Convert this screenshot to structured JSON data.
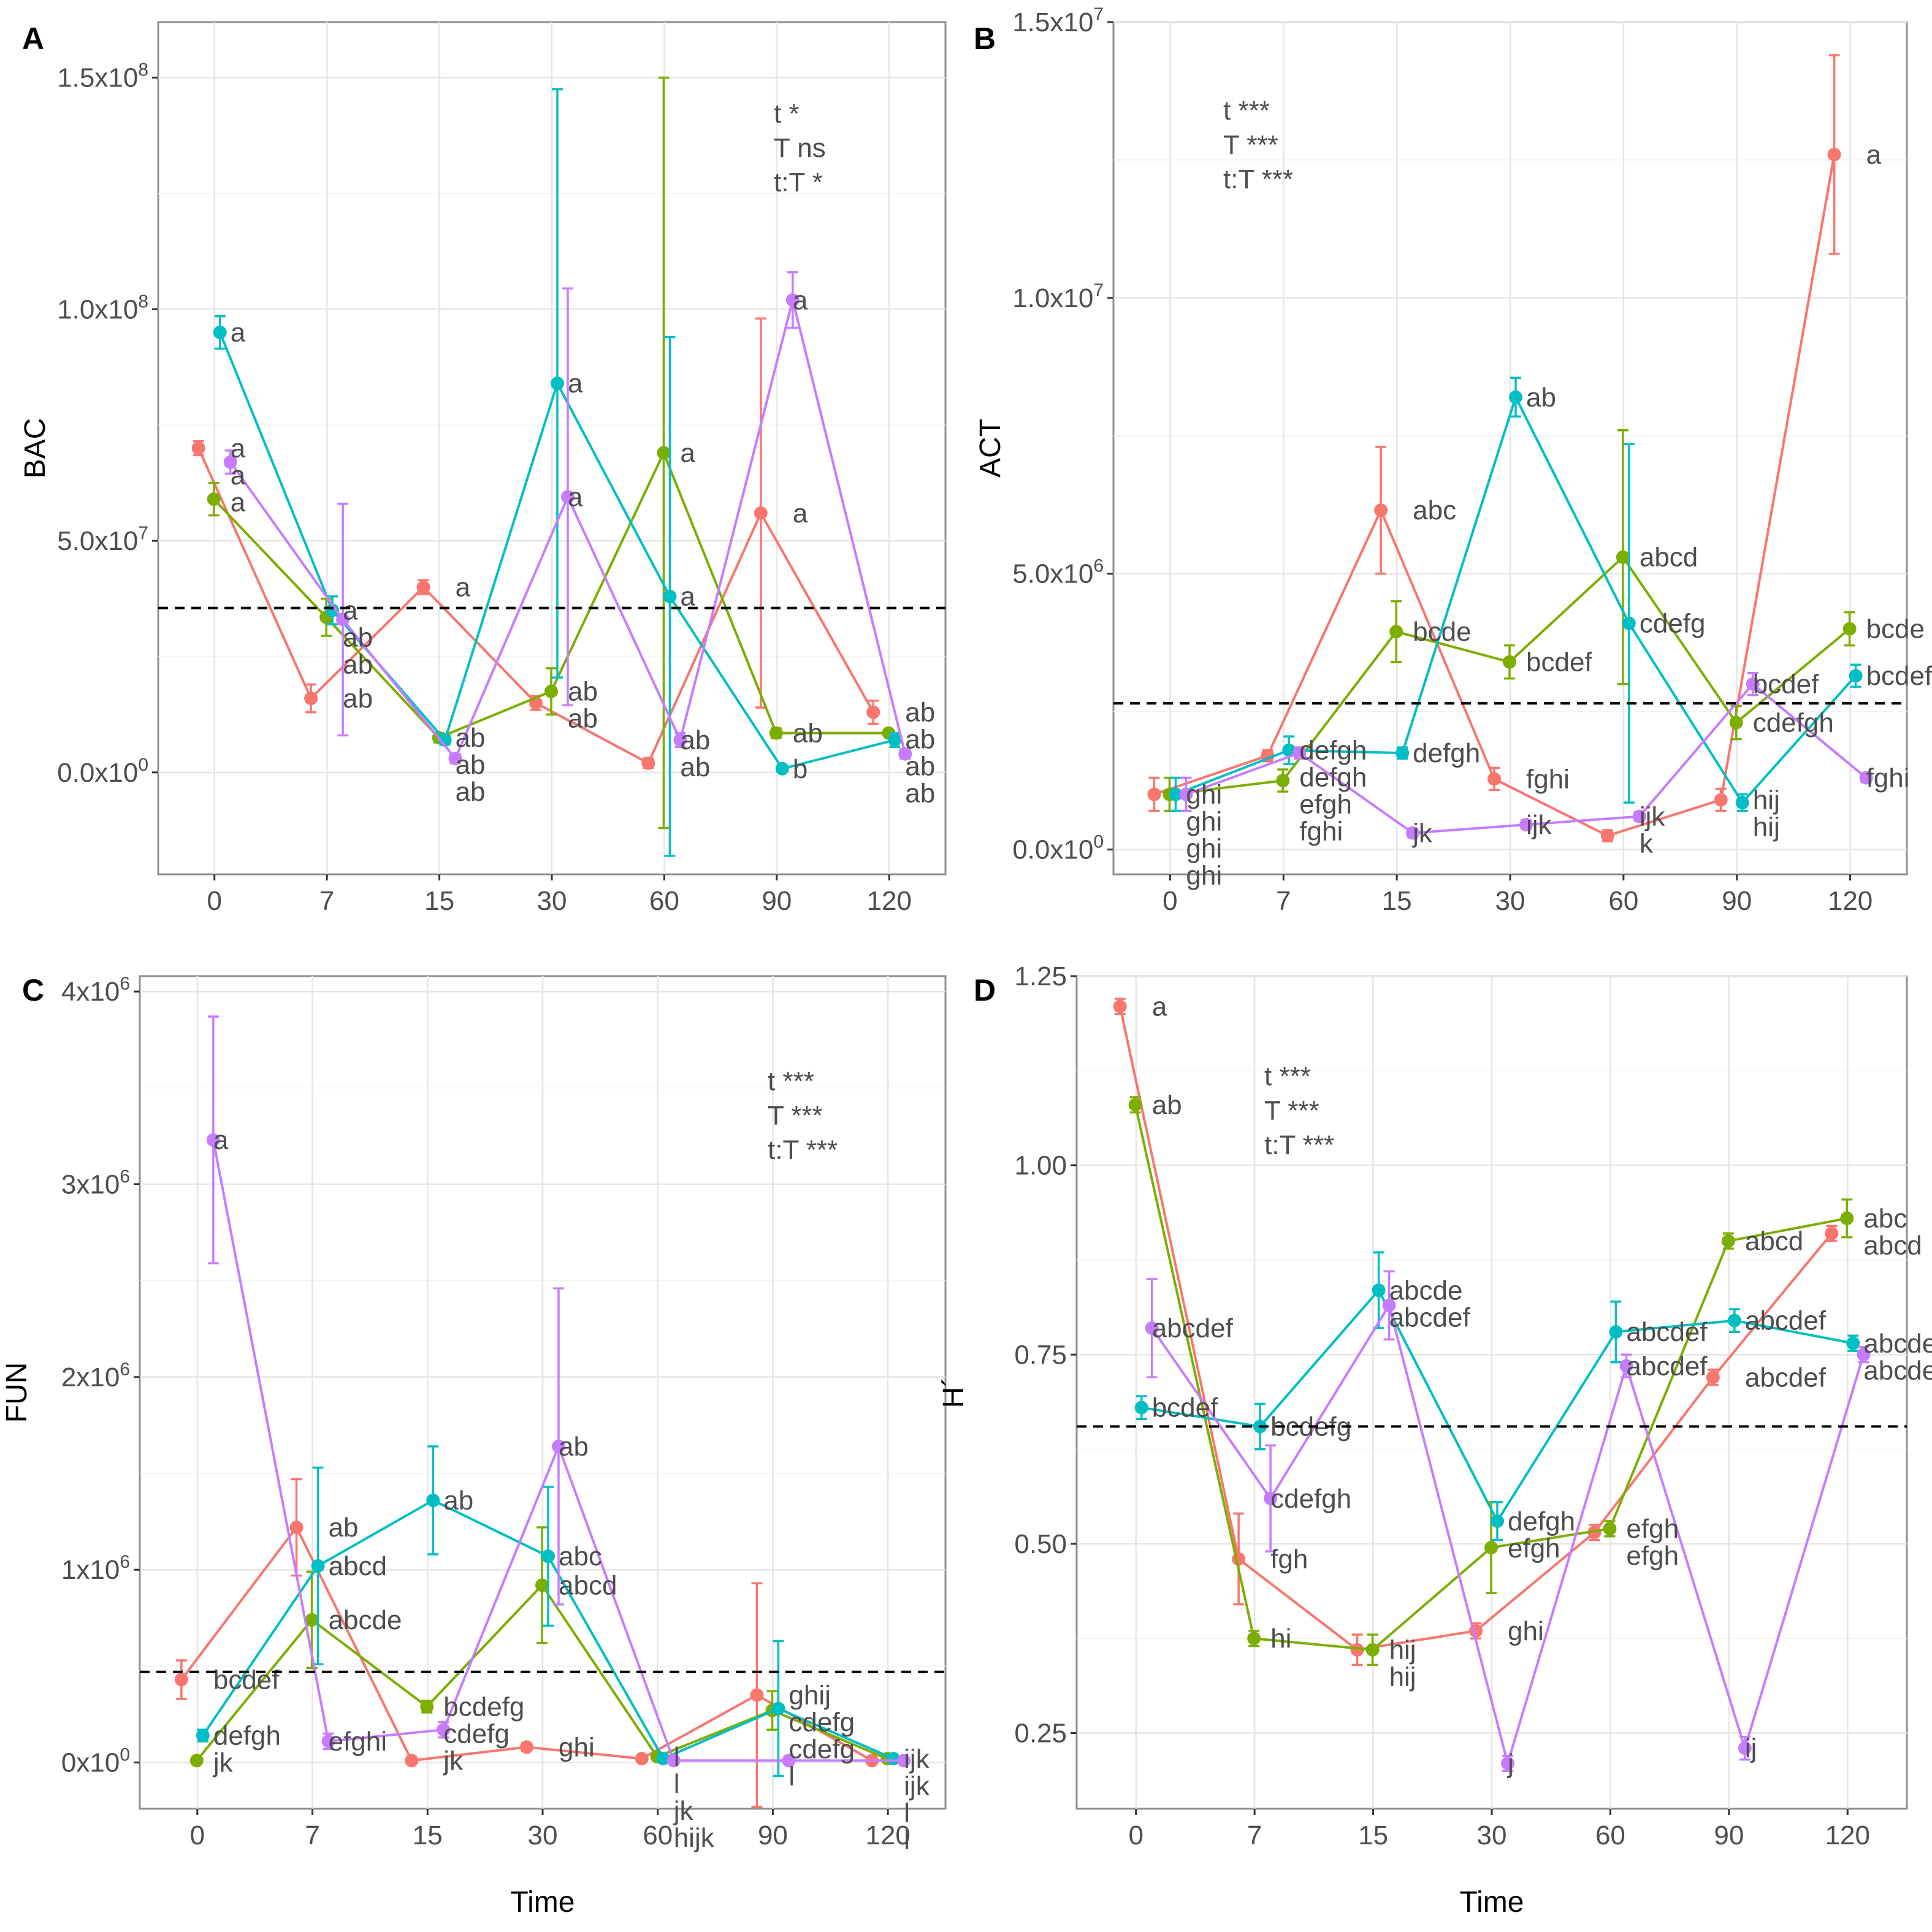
{
  "colors": {
    "t1": "#F8766D",
    "t2": "#7CAE00",
    "t3": "#00BFC4",
    "t4": "#C77CFF"
  },
  "chart_data": [
    {
      "type": "line",
      "panel": "A",
      "ylabel": "BAC",
      "xlabel": "",
      "categories": [
        "0",
        "7",
        "15",
        "30",
        "60",
        "90",
        "120"
      ],
      "ylim": [
        -22000000,
        162000000
      ],
      "yticks": [
        0,
        50000000,
        100000000,
        150000000
      ],
      "ytick_labels": [
        [
          "0.0x10",
          "0"
        ],
        [
          "5.0x10",
          "7"
        ],
        [
          "1.0x10",
          "8"
        ],
        [
          "1.5x10",
          "8"
        ]
      ],
      "reference_line": 35500000,
      "stats": [
        "t *",
        "T ns",
        "t:T *"
      ],
      "series": [
        {
          "name": "red",
          "color": "#F8766D",
          "values": [
            70000000,
            16000000,
            40000000,
            15000000,
            2000000,
            56000000,
            13000000
          ],
          "err": [
            1500000,
            3000000,
            1500000,
            1500000,
            1000000,
            42000000,
            2500000
          ],
          "labels": [
            "a",
            "ab",
            "a",
            "ab",
            "ab",
            "a",
            "ab"
          ]
        },
        {
          "name": "green",
          "color": "#7CAE00",
          "values": [
            59000000,
            33500000,
            7500000,
            17500000,
            69000000,
            8500000,
            8500000
          ],
          "err": [
            3500000,
            4000000,
            1000000,
            5000000,
            81000000,
            1000000,
            500000
          ],
          "labels": [
            "a",
            "ab",
            "ab",
            "ab",
            "a",
            "ab",
            "ab"
          ]
        },
        {
          "name": "cyan",
          "color": "#00BFC4",
          "values": [
            95000000,
            35000000,
            7000000,
            84000000,
            38000000,
            800000,
            7000000
          ],
          "err": [
            3500000,
            3000000,
            1000000,
            63500000,
            56000000,
            300000,
            1500000
          ],
          "labels": [
            "a",
            "a",
            "ab",
            "a",
            "a",
            "b",
            "ab"
          ]
        },
        {
          "name": "purple",
          "color": "#C77CFF",
          "values": [
            67000000,
            33000000,
            3000000,
            59500000,
            7000000,
            102000000,
            4000000
          ],
          "err": [
            2500000,
            25000000,
            1000000,
            45000000,
            1500000,
            6000000,
            1000000
          ],
          "labels": [
            "a",
            "ab",
            "ab",
            "a",
            "ab",
            "a",
            "ab"
          ]
        }
      ]
    },
    {
      "type": "line",
      "panel": "B",
      "ylabel": "ACT",
      "xlabel": "",
      "categories": [
        "0",
        "7",
        "15",
        "30",
        "60",
        "90",
        "120"
      ],
      "ylim": [
        -450000,
        15000000
      ],
      "yticks": [
        0,
        5000000,
        10000000,
        15000000
      ],
      "ytick_labels": [
        [
          "0.0x10",
          "0"
        ],
        [
          "5.0x10",
          "6"
        ],
        [
          "1.0x10",
          "7"
        ],
        [
          "1.5x10",
          "7"
        ]
      ],
      "reference_line": 2650000,
      "stats": [
        "t ***",
        "T ***",
        "t:T ***"
      ],
      "series": [
        {
          "name": "red",
          "color": "#F8766D",
          "values": [
            1000000,
            1700000,
            6150000,
            1280000,
            250000,
            900000,
            12600000
          ],
          "err": [
            300000,
            100000,
            1150000,
            200000,
            100000,
            200000,
            1800000
          ],
          "labels": [
            "ghi",
            "efgh",
            "abc",
            "fghi",
            "k",
            "hij",
            "a"
          ]
        },
        {
          "name": "green",
          "color": "#7CAE00",
          "values": [
            1000000,
            1250000,
            3950000,
            3400000,
            5300000,
            2300000,
            4000000
          ],
          "err": [
            300000,
            200000,
            550000,
            300000,
            2300000,
            300000,
            300000
          ],
          "labels": [
            "ghi",
            "fghi",
            "bcde",
            "bcdef",
            "abcd",
            "cdefgh",
            "bcde"
          ]
        },
        {
          "name": "cyan",
          "color": "#00BFC4",
          "values": [
            1000000,
            1800000,
            1750000,
            8200000,
            4100000,
            850000,
            3150000
          ],
          "err": [
            300000,
            250000,
            100000,
            350000,
            3250000,
            150000,
            200000
          ],
          "labels": [
            "ghi",
            "defgh",
            "defgh",
            "ab",
            "cdefg",
            "hij",
            "bcdef"
          ]
        },
        {
          "name": "purple",
          "color": "#C77CFF",
          "values": [
            1000000,
            1750000,
            300000,
            450000,
            600000,
            3000000,
            1300000
          ],
          "err": [
            300000,
            100000,
            80000,
            80000,
            80000,
            200000,
            80000
          ],
          "labels": [
            "ghi",
            "defgh",
            "jk",
            "ijk",
            "ijk",
            "bcdef",
            "fghi"
          ]
        }
      ]
    },
    {
      "type": "line",
      "panel": "C",
      "ylabel": "FUN",
      "xlabel": "Time",
      "categories": [
        "0",
        "7",
        "15",
        "30",
        "60",
        "90",
        "120"
      ],
      "ylim": [
        -240000,
        4080000
      ],
      "yticks": [
        0,
        1000000,
        2000000,
        3000000,
        4000000
      ],
      "ytick_labels": [
        [
          "0x10",
          "0"
        ],
        [
          "1x10",
          "6"
        ],
        [
          "2x10",
          "6"
        ],
        [
          "3x10",
          "6"
        ],
        [
          "4x10",
          "6"
        ]
      ],
      "reference_line": 470000,
      "stats": [
        "t ***",
        "T ***",
        "t:T ***"
      ],
      "series": [
        {
          "name": "red",
          "color": "#F8766D",
          "values": [
            430000,
            1220000,
            10000,
            80000,
            20000,
            350000,
            10000
          ],
          "err": [
            100000,
            250000,
            10000,
            20000,
            10000,
            580000,
            10000
          ],
          "labels": [
            "bcdef",
            "ab",
            "jk",
            "ghi",
            "l",
            "ghij",
            "l"
          ]
        },
        {
          "name": "green",
          "color": "#7CAE00",
          "values": [
            10000,
            740000,
            290000,
            920000,
            30000,
            270000,
            20000
          ],
          "err": [
            10000,
            250000,
            30000,
            300000,
            10000,
            100000,
            10000
          ],
          "labels": [
            "jk",
            "abcde",
            "bcdefg",
            "abcd",
            "l",
            "cdefg",
            "ijk"
          ]
        },
        {
          "name": "cyan",
          "color": "#00BFC4",
          "values": [
            140000,
            1020000,
            1360000,
            1070000,
            20000,
            280000,
            20000
          ],
          "err": [
            30000,
            510000,
            280000,
            360000,
            10000,
            350000,
            10000
          ],
          "labels": [
            "defgh",
            "abcd",
            "ab",
            "abc",
            "jk",
            "cdefg",
            "ijk"
          ]
        },
        {
          "name": "purple",
          "color": "#C77CFF",
          "values": [
            3230000,
            110000,
            170000,
            1640000,
            10000,
            10000,
            10000
          ],
          "err": [
            640000,
            40000,
            40000,
            820000,
            10000,
            10000,
            10000
          ],
          "labels": [
            "a",
            "efghi",
            "cdefg",
            "ab",
            "hijk",
            "l",
            "l"
          ]
        }
      ]
    },
    {
      "type": "line",
      "panel": "D",
      "ylabel": "H´",
      "xlabel": "Time",
      "categories": [
        "0",
        "7",
        "15",
        "30",
        "60",
        "90",
        "120"
      ],
      "ylim": [
        0.15,
        1.25
      ],
      "yticks": [
        0.25,
        0.5,
        0.75,
        1.0,
        1.25
      ],
      "ytick_labels": [
        [
          "0.25",
          ""
        ],
        [
          "0.50",
          ""
        ],
        [
          "0.75",
          ""
        ],
        [
          "1.00",
          ""
        ],
        [
          "1.25",
          ""
        ]
      ],
      "reference_line": 0.655,
      "stats": [
        "t ***",
        "T ***",
        "t:T ***"
      ],
      "series": [
        {
          "name": "red",
          "color": "#F8766D",
          "values": [
            1.21,
            0.48,
            0.36,
            0.385,
            0.515,
            0.72,
            0.91
          ],
          "err": [
            0.01,
            0.06,
            0.02,
            0.01,
            0.01,
            0.01,
            0.01
          ],
          "labels": [
            "a",
            "fgh",
            "hij",
            "ghi",
            "efgh",
            "abcdef",
            "abcd"
          ]
        },
        {
          "name": "green",
          "color": "#7CAE00",
          "values": [
            1.08,
            0.375,
            0.36,
            0.495,
            0.52,
            0.9,
            0.93
          ],
          "err": [
            0.01,
            0.01,
            0.02,
            0.06,
            0.01,
            0.01,
            0.025
          ],
          "labels": [
            "ab",
            "hi",
            "hij",
            "efgh",
            "efgh",
            "abcd",
            "abc"
          ]
        },
        {
          "name": "cyan",
          "color": "#00BFC4",
          "values": [
            0.68,
            0.655,
            0.835,
            0.53,
            0.78,
            0.795,
            0.765
          ],
          "err": [
            0.015,
            0.03,
            0.05,
            0.025,
            0.04,
            0.015,
            0.01
          ],
          "labels": [
            "bcdef",
            "bcdefg",
            "abcde",
            "defgh",
            "abcdef",
            "abcdef",
            "abcdef"
          ]
        },
        {
          "name": "purple",
          "color": "#C77CFF",
          "values": [
            0.785,
            0.56,
            0.815,
            0.21,
            0.735,
            0.23,
            0.75
          ],
          "err": [
            0.065,
            0.07,
            0.045,
            0.01,
            0.015,
            0.015,
            0.01
          ],
          "labels": [
            "abcdef",
            "cdefgh",
            "abcdef",
            "j",
            "abcdef",
            "ij",
            "abcdef"
          ]
        }
      ]
    }
  ]
}
